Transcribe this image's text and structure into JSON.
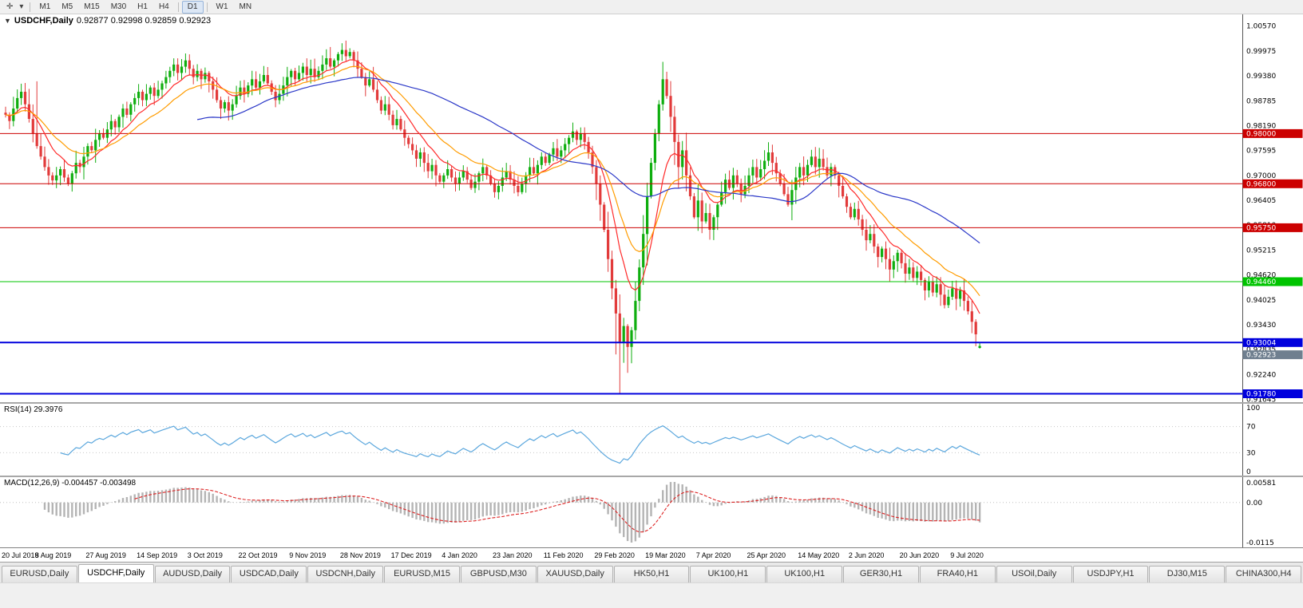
{
  "toolbar": {
    "icons": {
      "pointer": "✛",
      "caret": "▾"
    },
    "timeframes": [
      {
        "label": "M1",
        "active": false,
        "sep_before": false
      },
      {
        "label": "M5",
        "active": false,
        "sep_before": false
      },
      {
        "label": "M15",
        "active": false,
        "sep_before": false
      },
      {
        "label": "M30",
        "active": false,
        "sep_before": false
      },
      {
        "label": "H1",
        "active": false,
        "sep_before": false
      },
      {
        "label": "H4",
        "active": false,
        "sep_before": false
      },
      {
        "label": "D1",
        "active": true,
        "sep_before": true
      },
      {
        "label": "W1",
        "active": false,
        "sep_before": true
      },
      {
        "label": "MN",
        "active": false,
        "sep_before": false
      }
    ]
  },
  "chart": {
    "menu_icon": "▼",
    "title_symbol": "USDCHF,Daily",
    "title_ohlc": "0.92877 0.92998 0.92859 0.92923",
    "axis_labels": [
      1.0057,
      0.99975,
      0.9938,
      0.98785,
      0.9819,
      0.97595,
      0.97,
      0.96405,
      0.9581,
      0.95215,
      0.9462,
      0.94025,
      0.9343,
      0.92835,
      0.9224,
      0.91645
    ],
    "hlines": [
      {
        "price": 0.98,
        "label": "0.98000",
        "color": "#cc0000",
        "width": 1
      },
      {
        "price": 0.968,
        "label": "0.96800",
        "color": "#cc0000",
        "width": 1
      },
      {
        "price": 0.9575,
        "label": "0.95750",
        "color": "#cc0000",
        "width": 1
      },
      {
        "price": 0.9446,
        "label": "0.94460",
        "color": "#00c400",
        "width": 1
      },
      {
        "price": 0.93004,
        "label": "0.93004",
        "color": "#0000dd",
        "width": 2
      },
      {
        "price": 0.9178,
        "label": "0.91780",
        "color": "#0000dd",
        "width": 2
      }
    ],
    "current_price_tag": {
      "price": 0.92923,
      "label": "0.92923",
      "color": "#6f7f8f"
    },
    "dates": [
      "20 Jul 2019",
      "8 Aug 2019",
      "27 Aug 2019",
      "14 Sep 2019",
      "3 Oct 2019",
      "22 Oct 2019",
      "9 Nov 2019",
      "28 Nov 2019",
      "17 Dec 2019",
      "4 Jan 2020",
      "23 Jan 2020",
      "11 Feb 2020",
      "29 Feb 2020",
      "19 Mar 2020",
      "7 Apr 2020",
      "25 Apr 2020",
      "14 May 2020",
      "2 Jun 2020",
      "20 Jun 2020",
      "9 Jul 2020"
    ]
  },
  "chart_data": {
    "type": "candlestick",
    "symbol": "USDCHF",
    "timeframe": "Daily",
    "ylim": [
      0.9158,
      1.0085
    ],
    "up_color": "#0fae0f",
    "down_color": "#e23b3b",
    "first_open": 0.985,
    "closes": [
      0.9845,
      0.983,
      0.986,
      0.9885,
      0.99,
      0.987,
      0.9835,
      0.98,
      0.977,
      0.9745,
      0.972,
      0.97,
      0.9688,
      0.97,
      0.9715,
      0.9695,
      0.968,
      0.9705,
      0.973,
      0.972,
      0.9745,
      0.977,
      0.976,
      0.9785,
      0.98,
      0.979,
      0.981,
      0.983,
      0.9815,
      0.984,
      0.986,
      0.9845,
      0.987,
      0.9885,
      0.99,
      0.988,
      0.9895,
      0.991,
      0.989,
      0.9905,
      0.992,
      0.9935,
      0.995,
      0.9965,
      0.9945,
      0.996,
      0.9975,
      0.9955,
      0.9935,
      0.995,
      0.993,
      0.9945,
      0.9925,
      0.9905,
      0.988,
      0.986,
      0.9875,
      0.9855,
      0.987,
      0.989,
      0.991,
      0.9895,
      0.9915,
      0.993,
      0.991,
      0.9925,
      0.994,
      0.992,
      0.99,
      0.988,
      0.9895,
      0.9915,
      0.9935,
      0.995,
      0.993,
      0.9945,
      0.996,
      0.994,
      0.9955,
      0.9935,
      0.995,
      0.9965,
      0.998,
      0.996,
      0.9975,
      0.999,
      1.0,
      0.9985,
      0.9995,
      0.9975,
      0.9955,
      0.9935,
      0.9915,
      0.993,
      0.9905,
      0.988,
      0.9855,
      0.987,
      0.9845,
      0.982,
      0.9835,
      0.981,
      0.979,
      0.9775,
      0.976,
      0.974,
      0.9755,
      0.973,
      0.971,
      0.9725,
      0.97,
      0.9685,
      0.97,
      0.9715,
      0.9695,
      0.968,
      0.9695,
      0.971,
      0.969,
      0.967,
      0.9685,
      0.9705,
      0.972,
      0.97,
      0.968,
      0.966,
      0.9675,
      0.9695,
      0.971,
      0.969,
      0.9675,
      0.966,
      0.968,
      0.97,
      0.972,
      0.9705,
      0.9725,
      0.9745,
      0.973,
      0.975,
      0.9765,
      0.9745,
      0.976,
      0.9775,
      0.979,
      0.9805,
      0.9785,
      0.98,
      0.978,
      0.9755,
      0.972,
      0.968,
      0.963,
      0.957,
      0.95,
      0.943,
      0.937,
      0.93,
      0.934,
      0.929,
      0.933,
      0.94,
      0.948,
      0.956,
      0.965,
      0.973,
      0.98,
      0.987,
      0.993,
      0.989,
      0.984,
      0.978,
      0.972,
      0.976,
      0.97,
      0.965,
      0.96,
      0.964,
      0.959,
      0.961,
      0.957,
      0.96,
      0.963,
      0.966,
      0.969,
      0.967,
      0.97,
      0.968,
      0.9655,
      0.9675,
      0.97,
      0.972,
      0.9695,
      0.9715,
      0.9735,
      0.9755,
      0.973,
      0.9705,
      0.968,
      0.9655,
      0.963,
      0.9665,
      0.9695,
      0.972,
      0.97,
      0.9725,
      0.9745,
      0.972,
      0.974,
      0.972,
      0.97,
      0.972,
      0.97,
      0.9675,
      0.965,
      0.9625,
      0.96,
      0.962,
      0.9595,
      0.957,
      0.9545,
      0.956,
      0.953,
      0.9505,
      0.9525,
      0.95,
      0.9475,
      0.9495,
      0.9515,
      0.949,
      0.9465,
      0.948,
      0.9455,
      0.947,
      0.945,
      0.9425,
      0.9445,
      0.942,
      0.944,
      0.9415,
      0.939,
      0.941,
      0.943,
      0.9405,
      0.9425,
      0.94,
      0.9375,
      0.935,
      0.932,
      0.92923
    ],
    "high_overrides": {
      "8": 0.9925,
      "88": 1.0004
    },
    "low_overrides": {
      "156": 0.9272,
      "157": 0.918,
      "158": 0.9252,
      "159": 0.9228
    },
    "ohlc_overrides": {
      "249": [
        0.92877,
        0.92998,
        0.92859,
        0.92923
      ]
    },
    "moving_averages": [
      {
        "name": "ma-fast-red",
        "type": "ema",
        "period": 10,
        "color": "#ff2a2a"
      },
      {
        "name": "ma-mid-orange",
        "type": "ema",
        "period": 20,
        "color": "#ff9c00"
      },
      {
        "name": "ma-slow-blue",
        "type": "sma",
        "period": 50,
        "color": "#2b38c8"
      }
    ]
  },
  "rsi": {
    "label": "RSI(14) 29.3976",
    "period": 14,
    "levels": [
      100,
      70,
      30,
      0
    ],
    "line_color": "#5ba7dd"
  },
  "macd": {
    "label": "MACD(12,26,9) -0.004457 -0.003498",
    "axis": [
      "0.00581",
      "0.00",
      "-0.0115"
    ],
    "hist_color": "#b4b4b4",
    "signal_color": "#dd2222"
  },
  "tabs": [
    {
      "label": "EURUSD,Daily",
      "active": false
    },
    {
      "label": "USDCHF,Daily",
      "active": true
    },
    {
      "label": "AUDUSD,Daily",
      "active": false
    },
    {
      "label": "USDCAD,Daily",
      "active": false
    },
    {
      "label": "USDCNH,Daily",
      "active": false
    },
    {
      "label": "EURUSD,M15",
      "active": false
    },
    {
      "label": "GBPUSD,M30",
      "active": false
    },
    {
      "label": "XAUUSD,Daily",
      "active": false
    },
    {
      "label": "HK50,H1",
      "active": false
    },
    {
      "label": "UK100,H1",
      "active": false
    },
    {
      "label": "UK100,H1",
      "active": false
    },
    {
      "label": "GER30,H1",
      "active": false
    },
    {
      "label": "FRA40,H1",
      "active": false
    },
    {
      "label": "USOil,Daily",
      "active": false
    },
    {
      "label": "USDJPY,H1",
      "active": false
    },
    {
      "label": "DJ30,M15",
      "active": false
    },
    {
      "label": "CHINA300,H4",
      "active": false
    }
  ]
}
